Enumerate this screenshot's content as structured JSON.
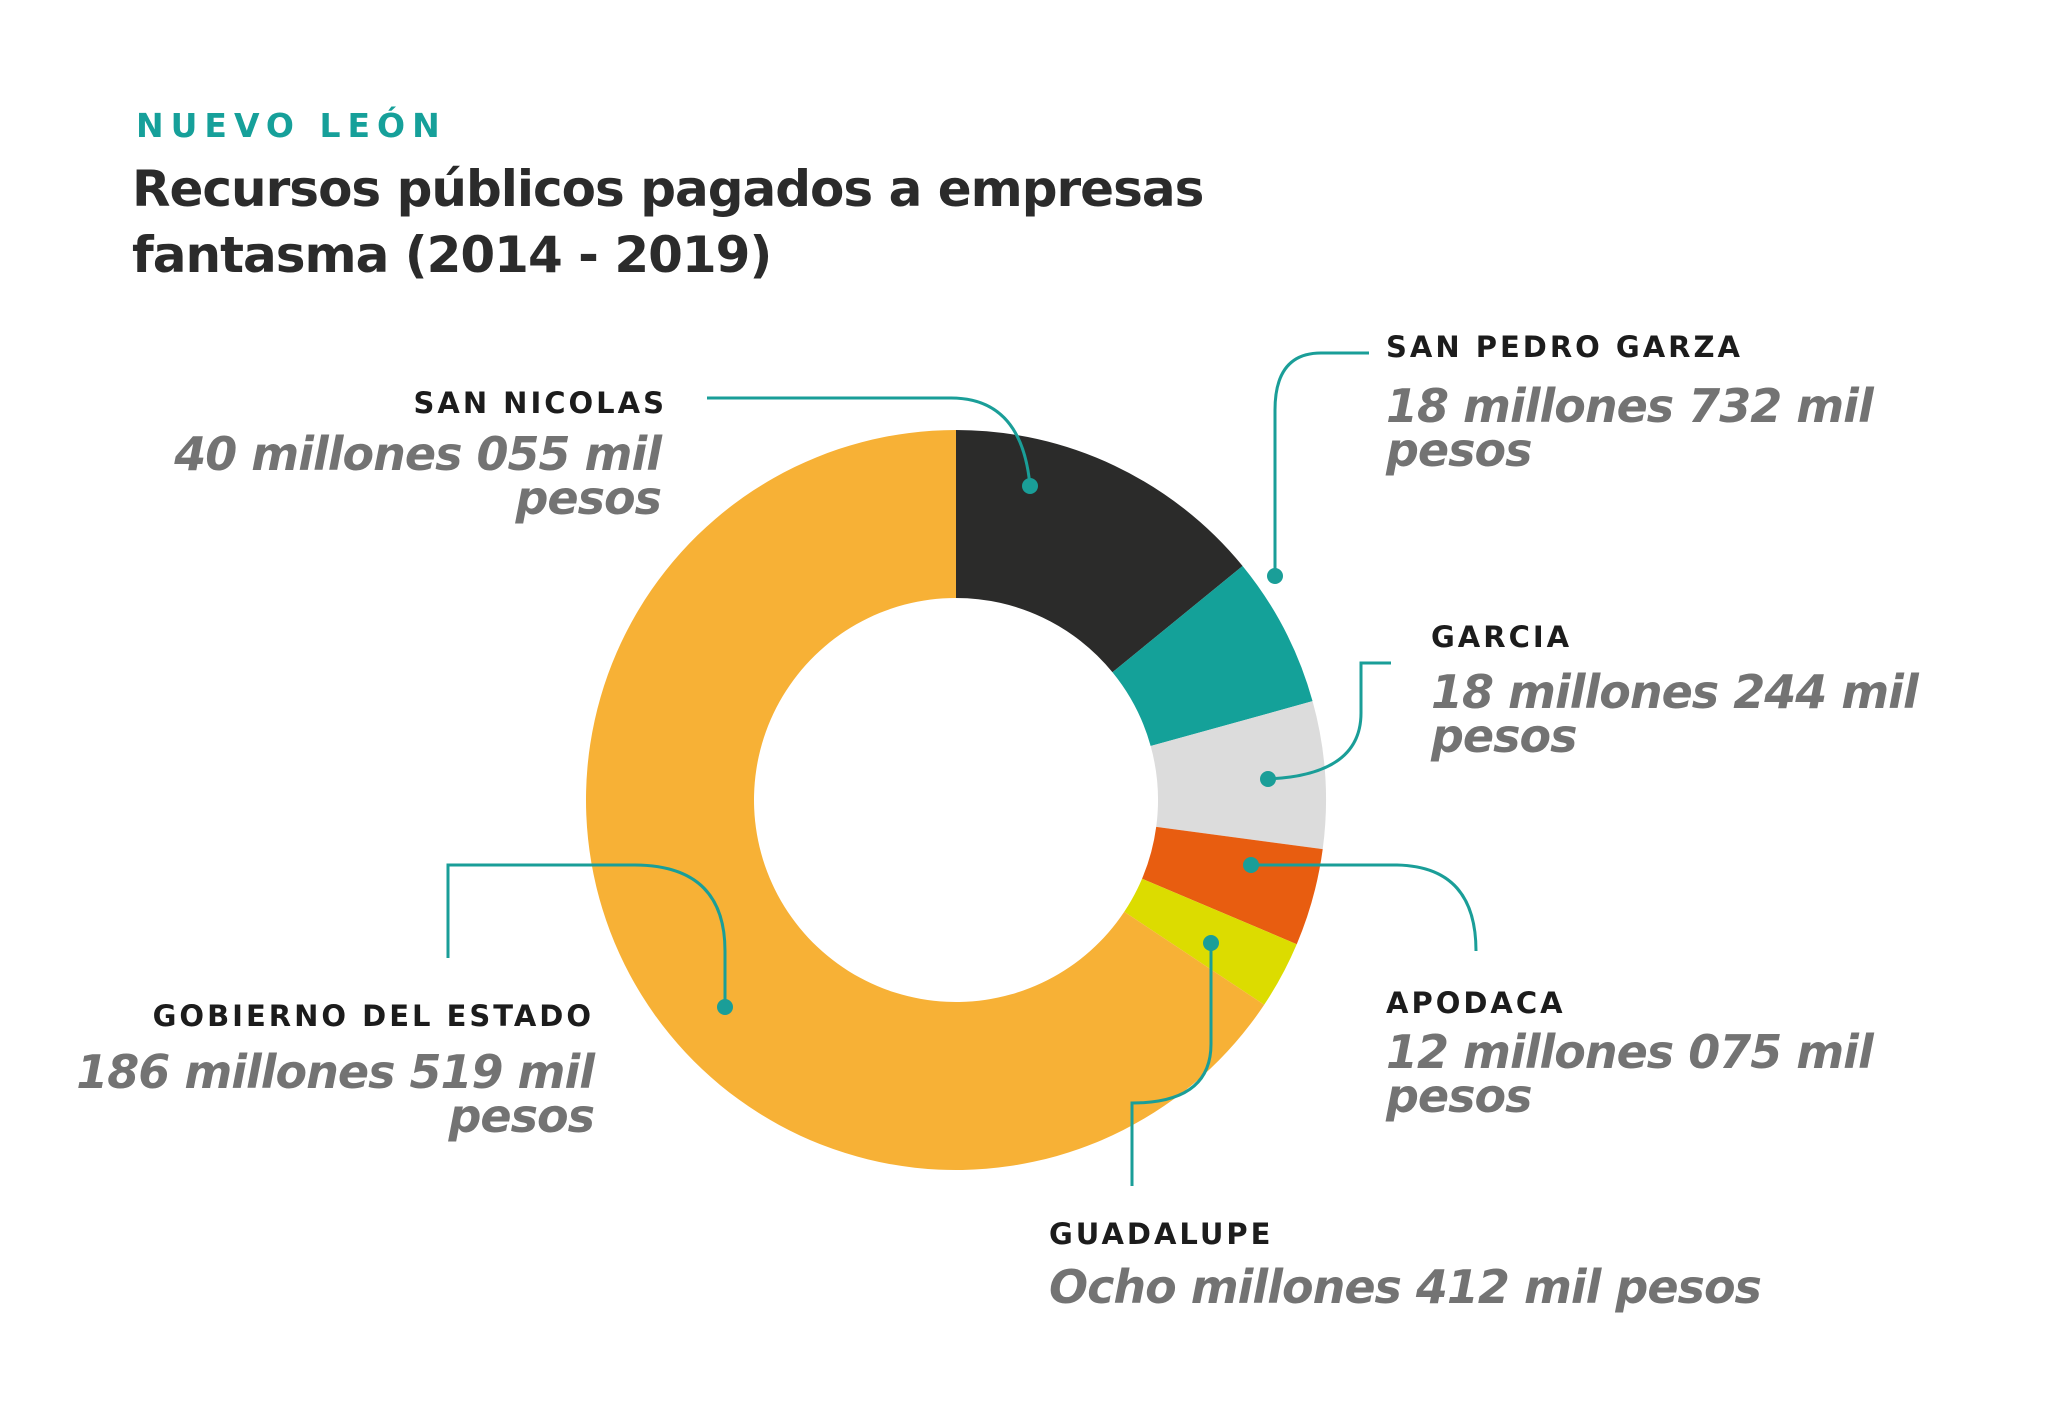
{
  "kicker": "NUEVO LEÓN",
  "title_line1": "Recursos públicos pagados a empresas",
  "title_line2": "fantasma (2014 - 2019)",
  "chart_data": {
    "type": "pie",
    "variant": "donut",
    "unit": "millones de pesos",
    "categories": [
      "SAN NICOLAS",
      "SAN PEDRO GARZA",
      "GARCIA",
      "APODACA",
      "GUADALUPE",
      "GOBIERNO DEL ESTADO"
    ],
    "values": [
      40.055,
      18.732,
      18.244,
      12.075,
      8.412,
      186.519
    ],
    "colors": [
      "#2b2b2a",
      "#14a199",
      "#dcdcdc",
      "#e85d10",
      "#dcdc00",
      "#f7b136"
    ],
    "data_labels": [
      {
        "name": "SAN NICOLAS",
        "line1": "40 millones 055 mil",
        "line2": "pesos"
      },
      {
        "name": "SAN PEDRO GARZA",
        "line1": "18 millones 732 mil",
        "line2": "pesos"
      },
      {
        "name": "GARCIA",
        "line1": "18 millones 244 mil",
        "line2": "pesos"
      },
      {
        "name": "APODACA",
        "line1": "12 millones 075 mil",
        "line2": "pesos"
      },
      {
        "name": "GUADALUPE",
        "line1": "Ocho millones 412 mil pesos",
        "line2": ""
      },
      {
        "name": "GOBIERNO DEL ESTADO",
        "line1": "186 millones 519 mil",
        "line2": "pesos"
      }
    ],
    "leader_color": "#1a9e98"
  }
}
